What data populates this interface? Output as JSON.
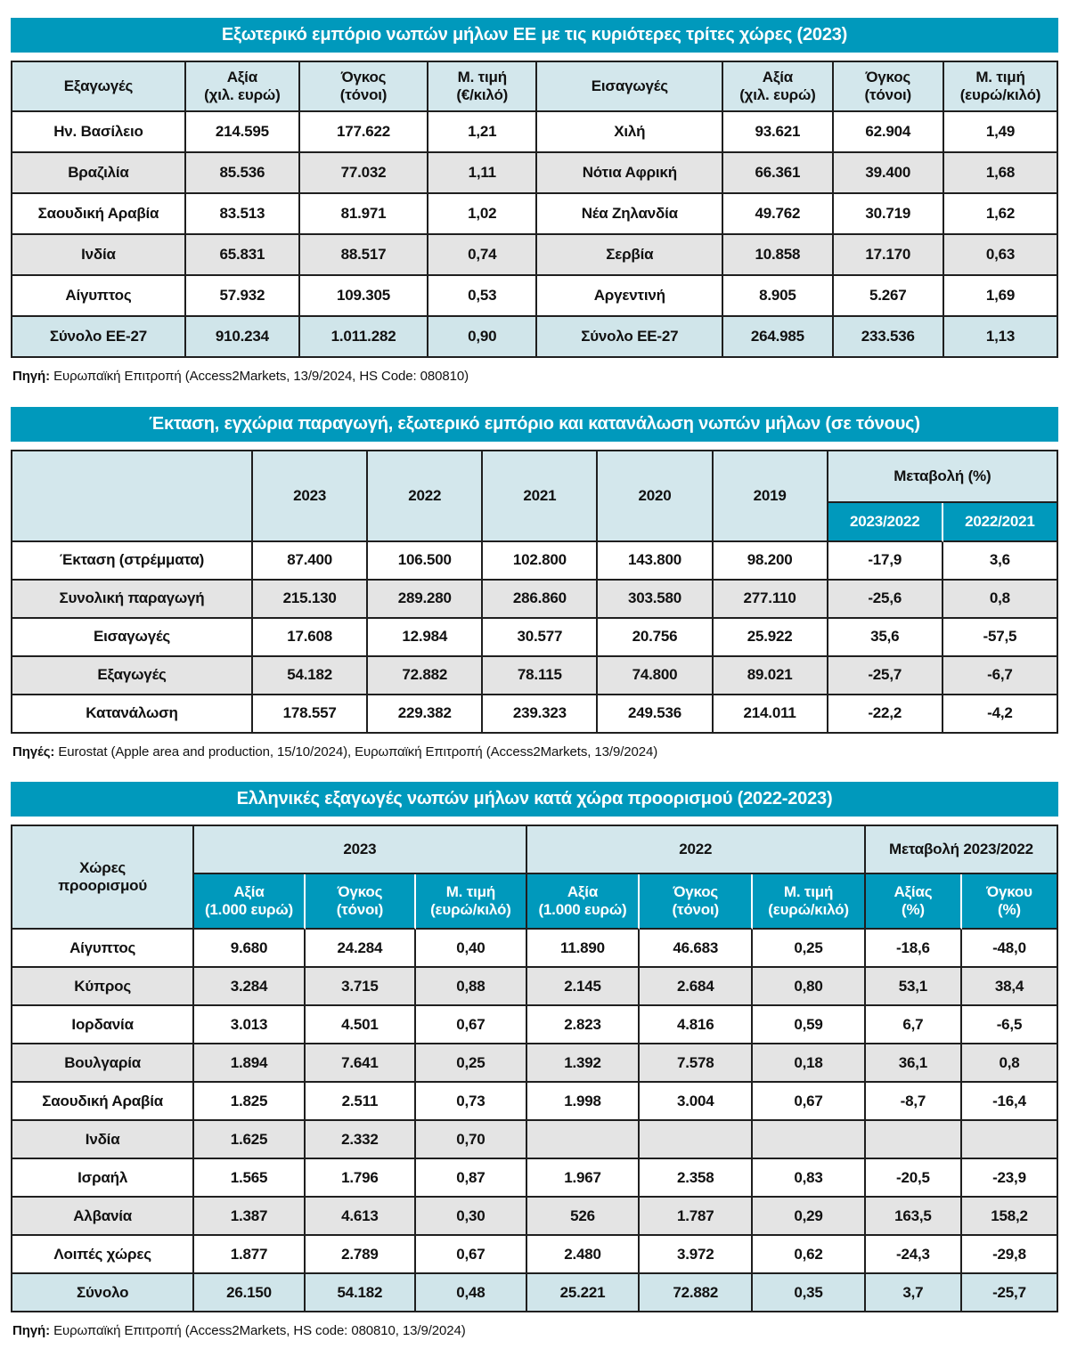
{
  "colors": {
    "accent_teal": "#0099bc",
    "header_light_blue": "#d3e7ec",
    "total_row_blue": "#d0e5ea",
    "alt_row_gray": "#e4e4e4",
    "border_dark": "#1f1f1f"
  },
  "table1": {
    "title": "Εξωτερικό εμπόριο νωπών μήλων ΕΕ με τις κυριότερες τρίτες χώρες (2023)",
    "headers": [
      "Εξαγωγές",
      "Αξία\n(χιλ. ευρώ)",
      "Όγκος\n(τόνοι)",
      "Μ. τιμή\n(€/κιλό)",
      "Εισαγωγές",
      "Αξία\n(χιλ. ευρώ)",
      "Όγκος\n(τόνοι)",
      "Μ. τιμή\n(ευρώ/κιλό)"
    ],
    "rows": [
      [
        "Ην. Βασίλειο",
        "214.595",
        "177.622",
        "1,21",
        "Χιλή",
        "93.621",
        "62.904",
        "1,49"
      ],
      [
        "Βραζιλία",
        "85.536",
        "77.032",
        "1,11",
        "Νότια Αφρική",
        "66.361",
        "39.400",
        "1,68"
      ],
      [
        "Σαουδική Αραβία",
        "83.513",
        "81.971",
        "1,02",
        "Νέα Ζηλανδία",
        "49.762",
        "30.719",
        "1,62"
      ],
      [
        "Ινδία",
        "65.831",
        "88.517",
        "0,74",
        "Σερβία",
        "10.858",
        "17.170",
        "0,63"
      ],
      [
        "Αίγυπτος",
        "57.932",
        "109.305",
        "0,53",
        "Αργεντινή",
        "8.905",
        "5.267",
        "1,69"
      ],
      [
        "Σύνολο ΕΕ-27",
        "910.234",
        "1.011.282",
        "0,90",
        "Σύνολο ΕΕ-27",
        "264.985",
        "233.536",
        "1,13"
      ]
    ],
    "source_label": "Πηγή:",
    "source_text": " Ευρωπαϊκή Επιτροπή (Access2Markets, 13/9/2024, HS Code: 080810)"
  },
  "table2": {
    "title": "Έκταση, εγχώρια παραγωγή, εξωτερικό εμπόριο και κατανάλωση νωπών μήλων (σε τόνους)",
    "corner_header": "",
    "year_headers": [
      "2023",
      "2022",
      "2021",
      "2020",
      "2019"
    ],
    "change_header": "Μεταβολή (%)",
    "change_subheaders": [
      "2023/2022",
      "2022/2021"
    ],
    "rows": [
      [
        "Έκταση (στρέμματα)",
        "87.400",
        "106.500",
        "102.800",
        "143.800",
        "98.200",
        "-17,9",
        "3,6"
      ],
      [
        "Συνολική παραγωγή",
        "215.130",
        "289.280",
        "286.860",
        "303.580",
        "277.110",
        "-25,6",
        "0,8"
      ],
      [
        "Εισαγωγές",
        "17.608",
        "12.984",
        "30.577",
        "20.756",
        "25.922",
        "35,6",
        "-57,5"
      ],
      [
        "Εξαγωγές",
        "54.182",
        "72.882",
        "78.115",
        "74.800",
        "89.021",
        "-25,7",
        "-6,7"
      ],
      [
        "Κατανάλωση",
        "178.557",
        "229.382",
        "239.323",
        "249.536",
        "214.011",
        "-22,2",
        "-4,2"
      ]
    ],
    "source_label": "Πηγές:",
    "source_text": " Eurostat (Apple area and production, 15/10/2024), Ευρωπαϊκή Επιτροπή (Access2Markets, 13/9/2024)"
  },
  "table3": {
    "title": "Ελληνικές εξαγωγές νωπών μήλων κατά χώρα προορισμού (2022-2023)",
    "corner_header": "Χώρες\nπροορισμού",
    "group_headers": [
      "2023",
      "2022",
      "Μεταβολή 2023/2022"
    ],
    "sub_headers": [
      "Αξία\n(1.000 ευρώ)",
      "Όγκος\n(τόνοι)",
      "Μ. τιμή\n(ευρώ/κιλό)",
      "Αξία\n(1.000 ευρώ)",
      "Όγκος\n(τόνοι)",
      "Μ. τιμή\n(ευρώ/κιλό)",
      "Αξίας\n(%)",
      "Όγκου\n(%)"
    ],
    "rows": [
      [
        "Αίγυπτος",
        "9.680",
        "24.284",
        "0,40",
        "11.890",
        "46.683",
        "0,25",
        "-18,6",
        "-48,0"
      ],
      [
        "Κύπρος",
        "3.284",
        "3.715",
        "0,88",
        "2.145",
        "2.684",
        "0,80",
        "53,1",
        "38,4"
      ],
      [
        "Ιορδανία",
        "3.013",
        "4.501",
        "0,67",
        "2.823",
        "4.816",
        "0,59",
        "6,7",
        "-6,5"
      ],
      [
        "Βουλγαρία",
        "1.894",
        "7.641",
        "0,25",
        "1.392",
        "7.578",
        "0,18",
        "36,1",
        "0,8"
      ],
      [
        "Σαουδική Αραβία",
        "1.825",
        "2.511",
        "0,73",
        "1.998",
        "3.004",
        "0,67",
        "-8,7",
        "-16,4"
      ],
      [
        "Ινδία",
        "1.625",
        "2.332",
        "0,70",
        "",
        "",
        "",
        "",
        ""
      ],
      [
        "Ισραήλ",
        "1.565",
        "1.796",
        "0,87",
        "1.967",
        "2.358",
        "0,83",
        "-20,5",
        "-23,9"
      ],
      [
        "Αλβανία",
        "1.387",
        "4.613",
        "0,30",
        "526",
        "1.787",
        "0,29",
        "163,5",
        "158,2"
      ],
      [
        "Λοιπές χώρες",
        "1.877",
        "2.789",
        "0,67",
        "2.480",
        "3.972",
        "0,62",
        "-24,3",
        "-29,8"
      ],
      [
        "Σύνολο",
        "26.150",
        "54.182",
        "0,48",
        "25.221",
        "72.882",
        "0,35",
        "3,7",
        "-25,7"
      ]
    ],
    "source_label": "Πηγή:",
    "source_text": " Ευρωπαϊκή Επιτροπή (Access2Markets, HS code: 080810, 13/9/2024)"
  }
}
